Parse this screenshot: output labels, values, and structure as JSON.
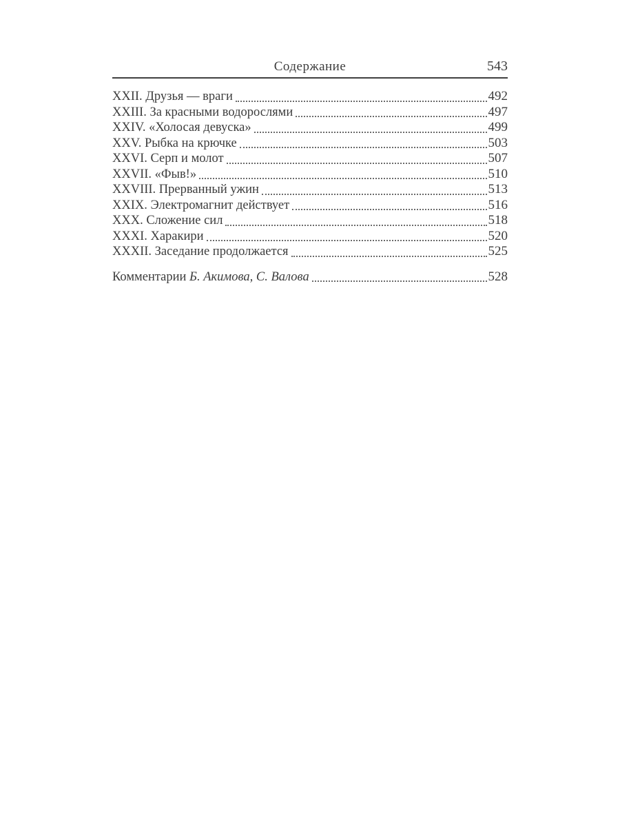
{
  "header": {
    "title": "Содержание",
    "page_number": "543"
  },
  "toc": {
    "entries": [
      {
        "label": "XXII. Друзья — враги",
        "page": "492"
      },
      {
        "label": "XXIII. За красными водорослями",
        "page": "497"
      },
      {
        "label": "XXIV. «Холосая девуска»",
        "page": "499"
      },
      {
        "label": "XXV. Рыбка на крючке",
        "page": "503"
      },
      {
        "label": "XXVI. Серп и молот",
        "page": "507"
      },
      {
        "label": "XXVII. «Фыв!»",
        "page": "510"
      },
      {
        "label": "XXVIII. Прерванный ужин",
        "page": "513"
      },
      {
        "label": "XXIX. Электромагнит действует",
        "page": "516"
      },
      {
        "label": "XXX. Сложение сил",
        "page": "518"
      },
      {
        "label": "XXXI. Харакири",
        "page": "520"
      },
      {
        "label": "XXXII. Заседание продолжается",
        "page": "525"
      }
    ],
    "comments": {
      "prefix": "Комментарии",
      "authors": "Б. Акимова, С. Валова",
      "page": "528"
    }
  },
  "colors": {
    "text": "#3d3d3d",
    "rule": "#3f3f3f",
    "background": "#ffffff"
  }
}
